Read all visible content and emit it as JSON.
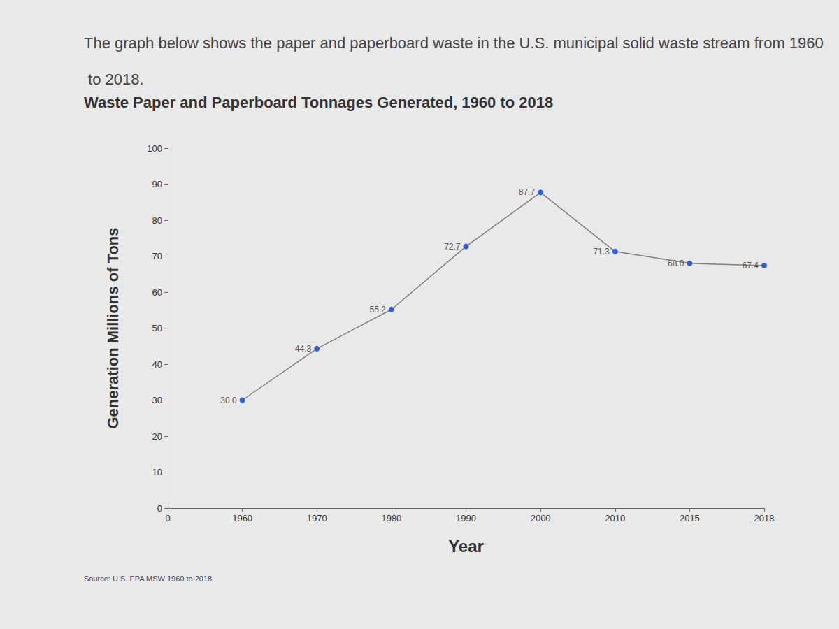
{
  "chart_data": {
    "type": "line",
    "subtitle": "The graph below shows the paper and paperboard waste in the U.S. municipal solid waste stream from 1960 to 2018.",
    "title": "Waste Paper and Paperboard Tonnages Generated, 1960 to 2018",
    "x_label": "Year",
    "y_label": "Generation Millions of Tons",
    "annotations": [
      "Source: U.S. EPA MSW 1960 to 2018"
    ],
    "categories": [
      "0",
      "1960",
      "1970",
      "1980",
      "1990",
      "2000",
      "2010",
      "2015",
      "2018"
    ],
    "values": [
      null,
      30.0,
      44.3,
      55.2,
      72.7,
      87.7,
      71.3,
      68.0,
      67.4
    ],
    "value_labels": [
      null,
      "30.0",
      "44.3",
      "55.2",
      "72.7",
      "87.7",
      "71.3",
      "68.0",
      "67.4"
    ],
    "color": "#2f5fd6",
    "marker": "circle",
    "data_labels": true,
    "ylim": [
      0,
      100
    ],
    "yticks": [
      0,
      10,
      20,
      30,
      40,
      50,
      60,
      70,
      80,
      90,
      100
    ],
    "grid": false
  }
}
